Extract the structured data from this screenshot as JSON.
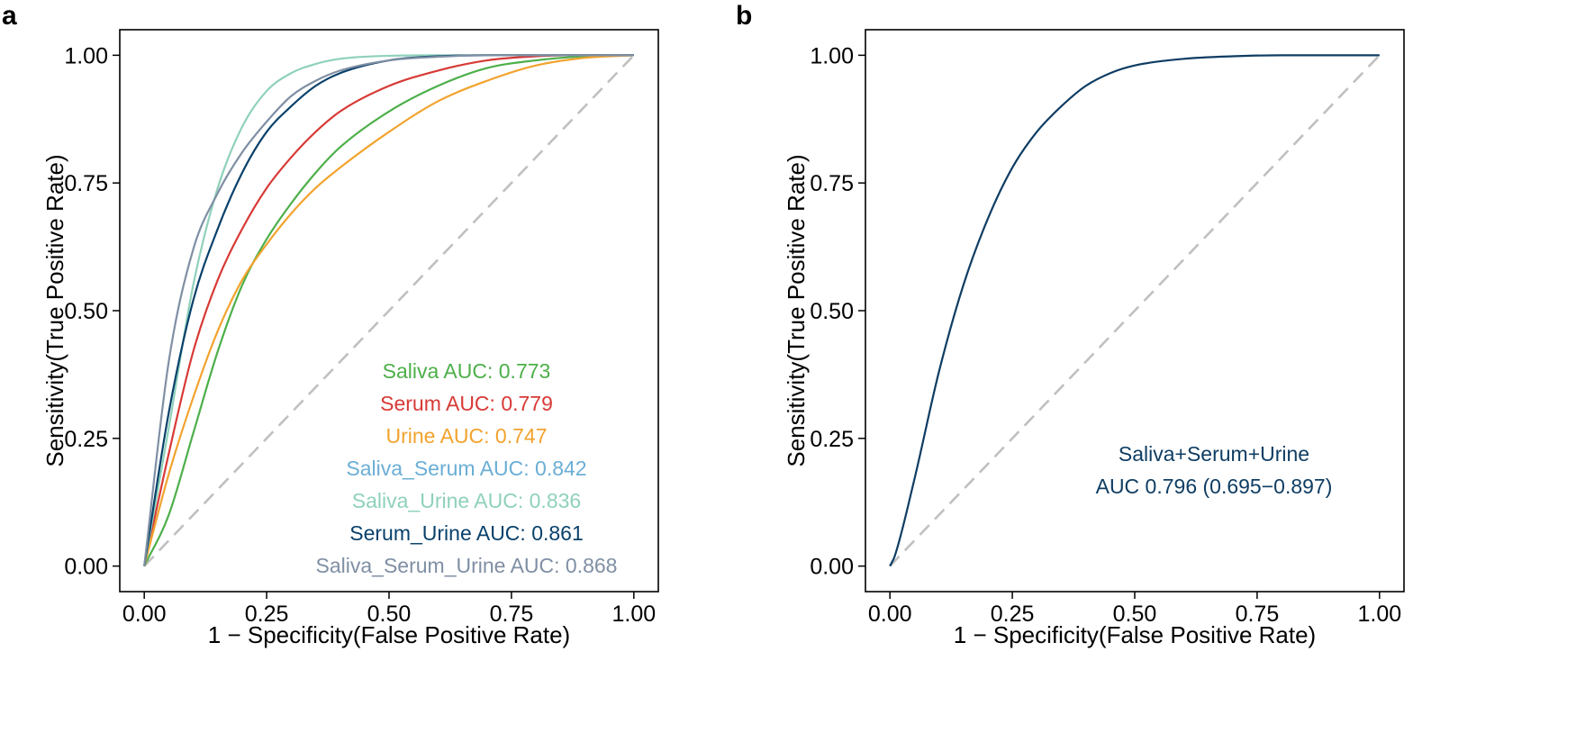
{
  "chart_data": [
    {
      "panel": "a",
      "type": "line",
      "title": "",
      "xlabel": "1 − Specificity(False Positive Rate)",
      "ylabel": "Sensitivity(True Positive Rate)",
      "xlim": [
        -0.05,
        1.05
      ],
      "ylim": [
        -0.05,
        1.05
      ],
      "xticks": [
        0,
        0.25,
        0.5,
        0.75,
        1
      ],
      "xtick_labels": [
        "0.00",
        "0.25",
        "0.50",
        "0.75",
        "1.00"
      ],
      "yticks": [
        0,
        0.25,
        0.5,
        0.75,
        1
      ],
      "ytick_labels": [
        "0.00",
        "0.25",
        "0.50",
        "0.75",
        "1.00"
      ],
      "grid": false,
      "reference_line": {
        "from": [
          0,
          0
        ],
        "to": [
          1,
          1
        ],
        "style": "dashed",
        "color": "#c0c0c0"
      },
      "legend_position": "bottom-right",
      "series": [
        {
          "name": "Saliva",
          "auc_label": "AUC: 0.773",
          "color": "#4daf4a",
          "x": [
            0,
            0.05,
            0.1,
            0.15,
            0.2,
            0.25,
            0.3,
            0.35,
            0.4,
            0.5,
            0.6,
            0.7,
            0.8,
            0.9,
            1.0
          ],
          "y": [
            0,
            0.1,
            0.26,
            0.42,
            0.55,
            0.64,
            0.71,
            0.77,
            0.82,
            0.89,
            0.94,
            0.975,
            0.99,
            0.998,
            1.0
          ]
        },
        {
          "name": "Serum",
          "auc_label": "AUC: 0.779",
          "color": "#d73a36",
          "x": [
            0,
            0.05,
            0.1,
            0.15,
            0.2,
            0.25,
            0.3,
            0.35,
            0.4,
            0.5,
            0.6,
            0.7,
            0.8,
            0.9,
            1.0
          ],
          "y": [
            0,
            0.22,
            0.42,
            0.56,
            0.66,
            0.74,
            0.8,
            0.85,
            0.89,
            0.94,
            0.97,
            0.99,
            0.998,
            1.0,
            1.0
          ]
        },
        {
          "name": "Urine",
          "auc_label": "AUC: 0.747",
          "color": "#f2a32e",
          "x": [
            0,
            0.05,
            0.1,
            0.15,
            0.2,
            0.25,
            0.3,
            0.35,
            0.4,
            0.5,
            0.6,
            0.7,
            0.8,
            0.9,
            1.0
          ],
          "y": [
            0,
            0.18,
            0.33,
            0.46,
            0.56,
            0.63,
            0.69,
            0.74,
            0.78,
            0.85,
            0.91,
            0.95,
            0.98,
            0.995,
            1.0
          ]
        },
        {
          "name": "Saliva_Serum",
          "auc_label": "AUC: 0.842",
          "color": "#6baed6",
          "show_curve": false,
          "x": [],
          "y": []
        },
        {
          "name": "Saliva_Urine",
          "auc_label": "AUC: 0.836",
          "color": "#8fd1bb",
          "x": [
            0,
            0.05,
            0.1,
            0.15,
            0.2,
            0.25,
            0.3,
            0.35,
            0.4,
            0.5,
            0.6,
            0.7,
            0.8,
            0.9,
            1.0
          ],
          "y": [
            0,
            0.27,
            0.55,
            0.74,
            0.86,
            0.93,
            0.965,
            0.983,
            0.993,
            0.999,
            1.0,
            1.0,
            1.0,
            1.0,
            1.0
          ]
        },
        {
          "name": "Serum_Urine",
          "auc_label": "AUC: 0.861",
          "color": "#08416b",
          "x": [
            0,
            0.05,
            0.1,
            0.15,
            0.2,
            0.25,
            0.3,
            0.35,
            0.4,
            0.5,
            0.6,
            0.7,
            0.8,
            0.9,
            1.0
          ],
          "y": [
            0,
            0.3,
            0.52,
            0.66,
            0.77,
            0.85,
            0.9,
            0.94,
            0.965,
            0.99,
            0.998,
            1.0,
            1.0,
            1.0,
            1.0
          ]
        },
        {
          "name": "Saliva_Serum_Urine",
          "auc_label": "AUC: 0.868",
          "color": "#7f8fa4",
          "x": [
            0,
            0.05,
            0.1,
            0.15,
            0.2,
            0.25,
            0.3,
            0.35,
            0.4,
            0.5,
            0.6,
            0.7,
            0.8,
            0.9,
            1.0
          ],
          "y": [
            0,
            0.4,
            0.62,
            0.73,
            0.81,
            0.87,
            0.92,
            0.95,
            0.97,
            0.99,
            0.997,
            1.0,
            1.0,
            1.0,
            1.0
          ]
        }
      ]
    },
    {
      "panel": "b",
      "type": "line",
      "title": "",
      "xlabel": "1 − Specificity(False Positive Rate)",
      "ylabel": "Sensitivity(True Positive Rate)",
      "xlim": [
        -0.05,
        1.05
      ],
      "ylim": [
        -0.05,
        1.05
      ],
      "xticks": [
        0,
        0.25,
        0.5,
        0.75,
        1
      ],
      "xtick_labels": [
        "0.00",
        "0.25",
        "0.50",
        "0.75",
        "1.00"
      ],
      "yticks": [
        0,
        0.25,
        0.5,
        0.75,
        1
      ],
      "ytick_labels": [
        "0.00",
        "0.25",
        "0.50",
        "0.75",
        "1.00"
      ],
      "grid": false,
      "reference_line": {
        "from": [
          0,
          0
        ],
        "to": [
          1,
          1
        ],
        "style": "dashed",
        "color": "#c0c0c0"
      },
      "legend_position": "bottom-right",
      "annotation_lines": [
        "Saliva+Serum+Urine",
        "AUC 0.796 (0.695−0.897)"
      ],
      "series": [
        {
          "name": "Saliva+Serum+Urine",
          "auc_label": "AUC 0.796 (0.695−0.897)",
          "color": "#0f3d63",
          "x": [
            0,
            0.01,
            0.05,
            0.1,
            0.15,
            0.2,
            0.25,
            0.3,
            0.35,
            0.4,
            0.45,
            0.5,
            0.6,
            0.7,
            0.8,
            0.9,
            1.0
          ],
          "y": [
            0,
            0.02,
            0.17,
            0.38,
            0.55,
            0.68,
            0.78,
            0.85,
            0.9,
            0.94,
            0.965,
            0.98,
            0.993,
            0.998,
            1.0,
            1.0,
            1.0
          ]
        }
      ]
    }
  ]
}
